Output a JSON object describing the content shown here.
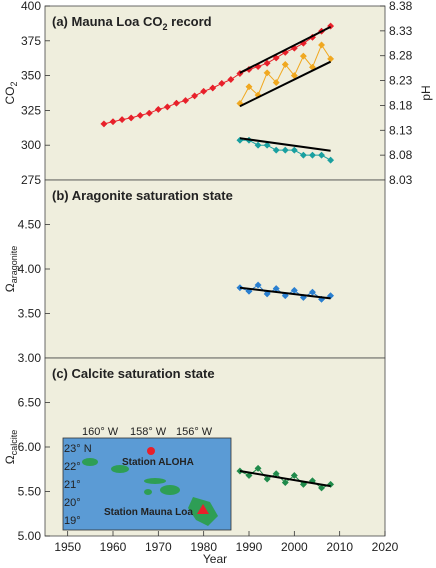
{
  "chart_data": [
    {
      "panel": "a",
      "type": "scatter",
      "title_prefix": "(a)",
      "title": "Mauna Loa CO",
      "title_sub": "2",
      "title_suffix": " record",
      "ylabel_left": "CO",
      "ylabel_left_sub": "2",
      "ylabel_right": "pH",
      "ylim": [
        275,
        400
      ],
      "yticks": [
        "275",
        "300",
        "325",
        "350",
        "375",
        "400"
      ],
      "ylim_right": [
        8.03,
        8.38
      ],
      "yticks_right": [
        "8.03",
        "8.08",
        "8.13",
        "8.18",
        "8.23",
        "8.28",
        "8.33",
        "8.38"
      ],
      "xlim": [
        1945,
        2020
      ],
      "series": [
        {
          "color": "#e8202a",
          "marker": "diamond",
          "x": [
            1958,
            1960,
            1962,
            1964,
            1966,
            1968,
            1970,
            1972,
            1974,
            1976,
            1978,
            1980,
            1982,
            1984,
            1986,
            1988,
            1990,
            1992,
            1994,
            1996,
            1998,
            2000,
            2002,
            2004,
            2006,
            2008
          ],
          "y": [
            315.3,
            316.9,
            318.4,
            319.6,
            321.4,
            323.0,
            325.7,
            327.5,
            330.2,
            332.1,
            335.4,
            338.7,
            341.1,
            344.4,
            347.2,
            351.5,
            354.4,
            356.5,
            358.9,
            362.7,
            366.7,
            369.7,
            373.3,
            377.5,
            381.9,
            385.6
          ]
        },
        {
          "color": "#f0a820",
          "marker": "diamond",
          "x": [
            1988,
            1990,
            1992,
            1994,
            1996,
            1998,
            2000,
            2002,
            2004,
            2006,
            2008
          ],
          "y": [
            330,
            342,
            336,
            352,
            345,
            358,
            350,
            364,
            356,
            372,
            362
          ]
        },
        {
          "color": "#1aa0a0",
          "marker": "diamond",
          "x": [
            1988,
            1990,
            1992,
            1994,
            1996,
            1998,
            2000,
            2002,
            2004,
            2006,
            2008
          ],
          "y": [
            8.11,
            8.11,
            8.1,
            8.1,
            8.09,
            8.09,
            8.09,
            8.08,
            8.08,
            8.08,
            8.07
          ]
        }
      ],
      "trendlines": [
        {
          "x": [
            1988,
            2008
          ],
          "y": [
            352,
            385
          ]
        },
        {
          "x": [
            1988,
            2008
          ],
          "y": [
            328,
            360
          ]
        },
        {
          "x": [
            1988,
            2008
          ],
          "y": [
            305,
            296
          ]
        }
      ]
    },
    {
      "panel": "b",
      "type": "scatter",
      "title_prefix": "(b)",
      "title": "Aragonite saturation state",
      "ylabel": "Ω",
      "ylabel_sub": "aragonite",
      "ylim": [
        3.0,
        5.0
      ],
      "yticks": [
        "3.00",
        "3.50",
        "4.00",
        "4.50"
      ],
      "xlim": [
        1945,
        2020
      ],
      "series": [
        {
          "color": "#2a7fd0",
          "marker": "diamond",
          "x": [
            1988,
            1990,
            1992,
            1994,
            1996,
            1998,
            2000,
            2002,
            2004,
            2006,
            2008
          ],
          "y": [
            3.79,
            3.75,
            3.82,
            3.72,
            3.78,
            3.7,
            3.76,
            3.68,
            3.74,
            3.66,
            3.7
          ]
        }
      ],
      "trendlines": [
        {
          "x": [
            1988,
            2008
          ],
          "y": [
            3.79,
            3.67
          ]
        }
      ]
    },
    {
      "panel": "c",
      "type": "scatter",
      "title_prefix": "(c)",
      "title": "Calcite saturation state",
      "ylabel": "Ω",
      "ylabel_sub": "calcite",
      "ylim": [
        5.0,
        7.0
      ],
      "yticks": [
        "5.00",
        "5.50",
        "6.00",
        "6.50"
      ],
      "xlim": [
        1945,
        2020
      ],
      "xticks": [
        "1950",
        "1960",
        "1970",
        "1980",
        "1990",
        "2000",
        "2010",
        "2020"
      ],
      "xlabel": "Year",
      "series": [
        {
          "color": "#1f8a4a",
          "marker": "diamond",
          "x": [
            1988,
            1990,
            1992,
            1994,
            1996,
            1998,
            2000,
            2002,
            2004,
            2006,
            2008
          ],
          "y": [
            5.73,
            5.68,
            5.76,
            5.64,
            5.7,
            5.6,
            5.68,
            5.58,
            5.62,
            5.54,
            5.58
          ]
        }
      ],
      "trendlines": [
        {
          "x": [
            1988,
            2008
          ],
          "y": [
            5.73,
            5.56
          ]
        }
      ]
    }
  ],
  "inset_map": {
    "lon_labels": [
      "160° W",
      "158° W",
      "156° W"
    ],
    "lat_labels": [
      "23° N",
      "22°",
      "21°",
      "20°",
      "19°"
    ],
    "stations": [
      {
        "label": "Station ALOHA",
        "marker_color": "#e8202a",
        "marker": "circle"
      },
      {
        "label": "Station Mauna Loa",
        "marker_color": "#e8202a",
        "marker": "triangle"
      }
    ],
    "ocean_color": "#5b9bd5",
    "land_color": "#2e9e55"
  },
  "colors": {
    "panel_bg": "#efeedd"
  }
}
